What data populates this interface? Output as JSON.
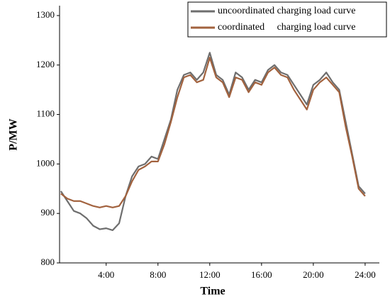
{
  "chart_data": {
    "type": "line",
    "x_label": "Time",
    "y_label": "P/MW",
    "x": [
      0.5,
      1,
      1.5,
      2,
      2.5,
      3,
      3.5,
      4,
      4.5,
      5,
      5.5,
      6,
      6.5,
      7,
      7.5,
      8,
      8.5,
      9,
      9.5,
      10,
      10.5,
      11,
      11.5,
      12,
      12.5,
      13,
      13.5,
      14,
      14.5,
      15,
      15.5,
      16,
      16.5,
      17,
      17.5,
      18,
      18.5,
      19,
      19.5,
      20,
      20.5,
      21,
      21.5,
      22,
      22.5,
      23,
      23.5,
      24
    ],
    "series": [
      {
        "name": "uncoordinated charging load curve",
        "color": "#6e6e6e",
        "values": [
          945,
          925,
          905,
          900,
          890,
          875,
          868,
          870,
          866,
          880,
          935,
          975,
          995,
          1000,
          1015,
          1010,
          1050,
          1090,
          1150,
          1180,
          1185,
          1170,
          1185,
          1225,
          1180,
          1170,
          1140,
          1185,
          1175,
          1150,
          1170,
          1165,
          1190,
          1200,
          1185,
          1180,
          1160,
          1140,
          1120,
          1160,
          1170,
          1185,
          1165,
          1150,
          1085,
          1020,
          955,
          940
        ]
      },
      {
        "name": "coordinated     charging load curve",
        "color": "#a2623e",
        "values": [
          940,
          930,
          925,
          925,
          920,
          915,
          912,
          915,
          912,
          915,
          935,
          965,
          988,
          995,
          1005,
          1005,
          1040,
          1085,
          1135,
          1175,
          1180,
          1165,
          1170,
          1215,
          1175,
          1165,
          1135,
          1175,
          1170,
          1145,
          1165,
          1160,
          1185,
          1195,
          1180,
          1175,
          1150,
          1130,
          1110,
          1150,
          1165,
          1175,
          1160,
          1145,
          1075,
          1015,
          950,
          935
        ]
      }
    ],
    "xlim": [
      0.4,
      25.1
    ],
    "xticks": [
      {
        "value": 4,
        "label": "4:00"
      },
      {
        "value": 8,
        "label": "8:00"
      },
      {
        "value": 12,
        "label": "12:00"
      },
      {
        "value": 16,
        "label": "16:00"
      },
      {
        "value": 20,
        "label": "20:00"
      },
      {
        "value": 24,
        "label": "24:00"
      }
    ],
    "ylim": [
      800,
      1320
    ],
    "yticks": [
      800,
      900,
      1000,
      1100,
      1200,
      1300
    ],
    "grid": false,
    "legend": "top-right"
  }
}
